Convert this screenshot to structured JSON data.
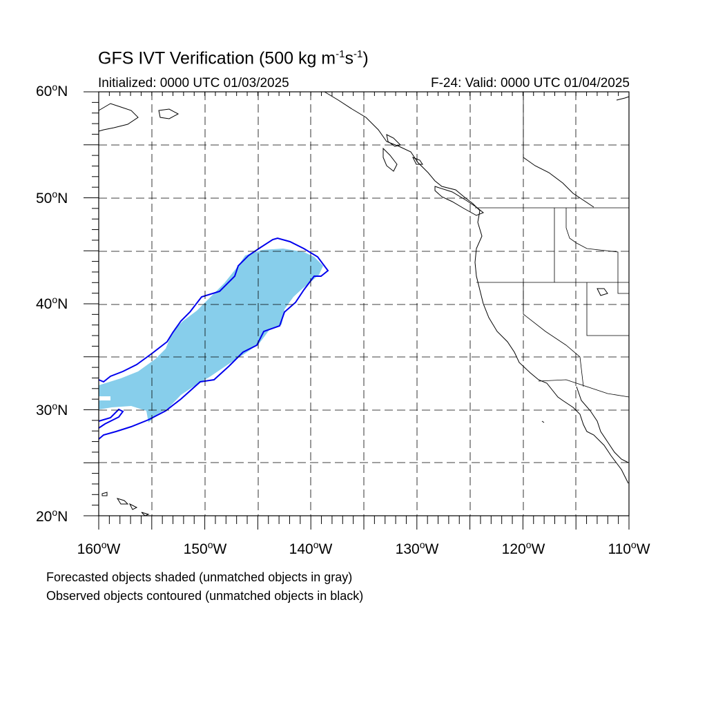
{
  "title": {
    "prefix": "GFS IVT Verification (500 kg m",
    "exp1": "-1",
    "middle": "s",
    "exp2": "-1",
    "suffix": ")"
  },
  "subtitle_left": "Initialized: 0000 UTC 01/03/2025",
  "subtitle_right": "F-24: Valid: 0000 UTC 01/04/2025",
  "lat_labels": [
    {
      "num": "60",
      "hemi": "N"
    },
    {
      "num": "50",
      "hemi": "N"
    },
    {
      "num": "40",
      "hemi": "N"
    },
    {
      "num": "30",
      "hemi": "N"
    },
    {
      "num": "20",
      "hemi": "N"
    }
  ],
  "lon_labels": [
    {
      "num": "160",
      "hemi": "W"
    },
    {
      "num": "150",
      "hemi": "W"
    },
    {
      "num": "140",
      "hemi": "W"
    },
    {
      "num": "130",
      "hemi": "W"
    },
    {
      "num": "120",
      "hemi": "W"
    },
    {
      "num": "110",
      "hemi": "W"
    }
  ],
  "degree_symbol": "o",
  "captions": [
    "Forecasted objects shaded (unmatched objects in gray)",
    "Observed objects contoured (unmatched objects in black)"
  ],
  "colors": {
    "forecast_fill": "#87ceeb",
    "observed_contour": "#0000ee",
    "coastline": "#000000",
    "grid": "#000000"
  },
  "map_extent": {
    "lon_min": -160,
    "lon_max": -110,
    "lat_min": 20,
    "lat_max": 60
  }
}
